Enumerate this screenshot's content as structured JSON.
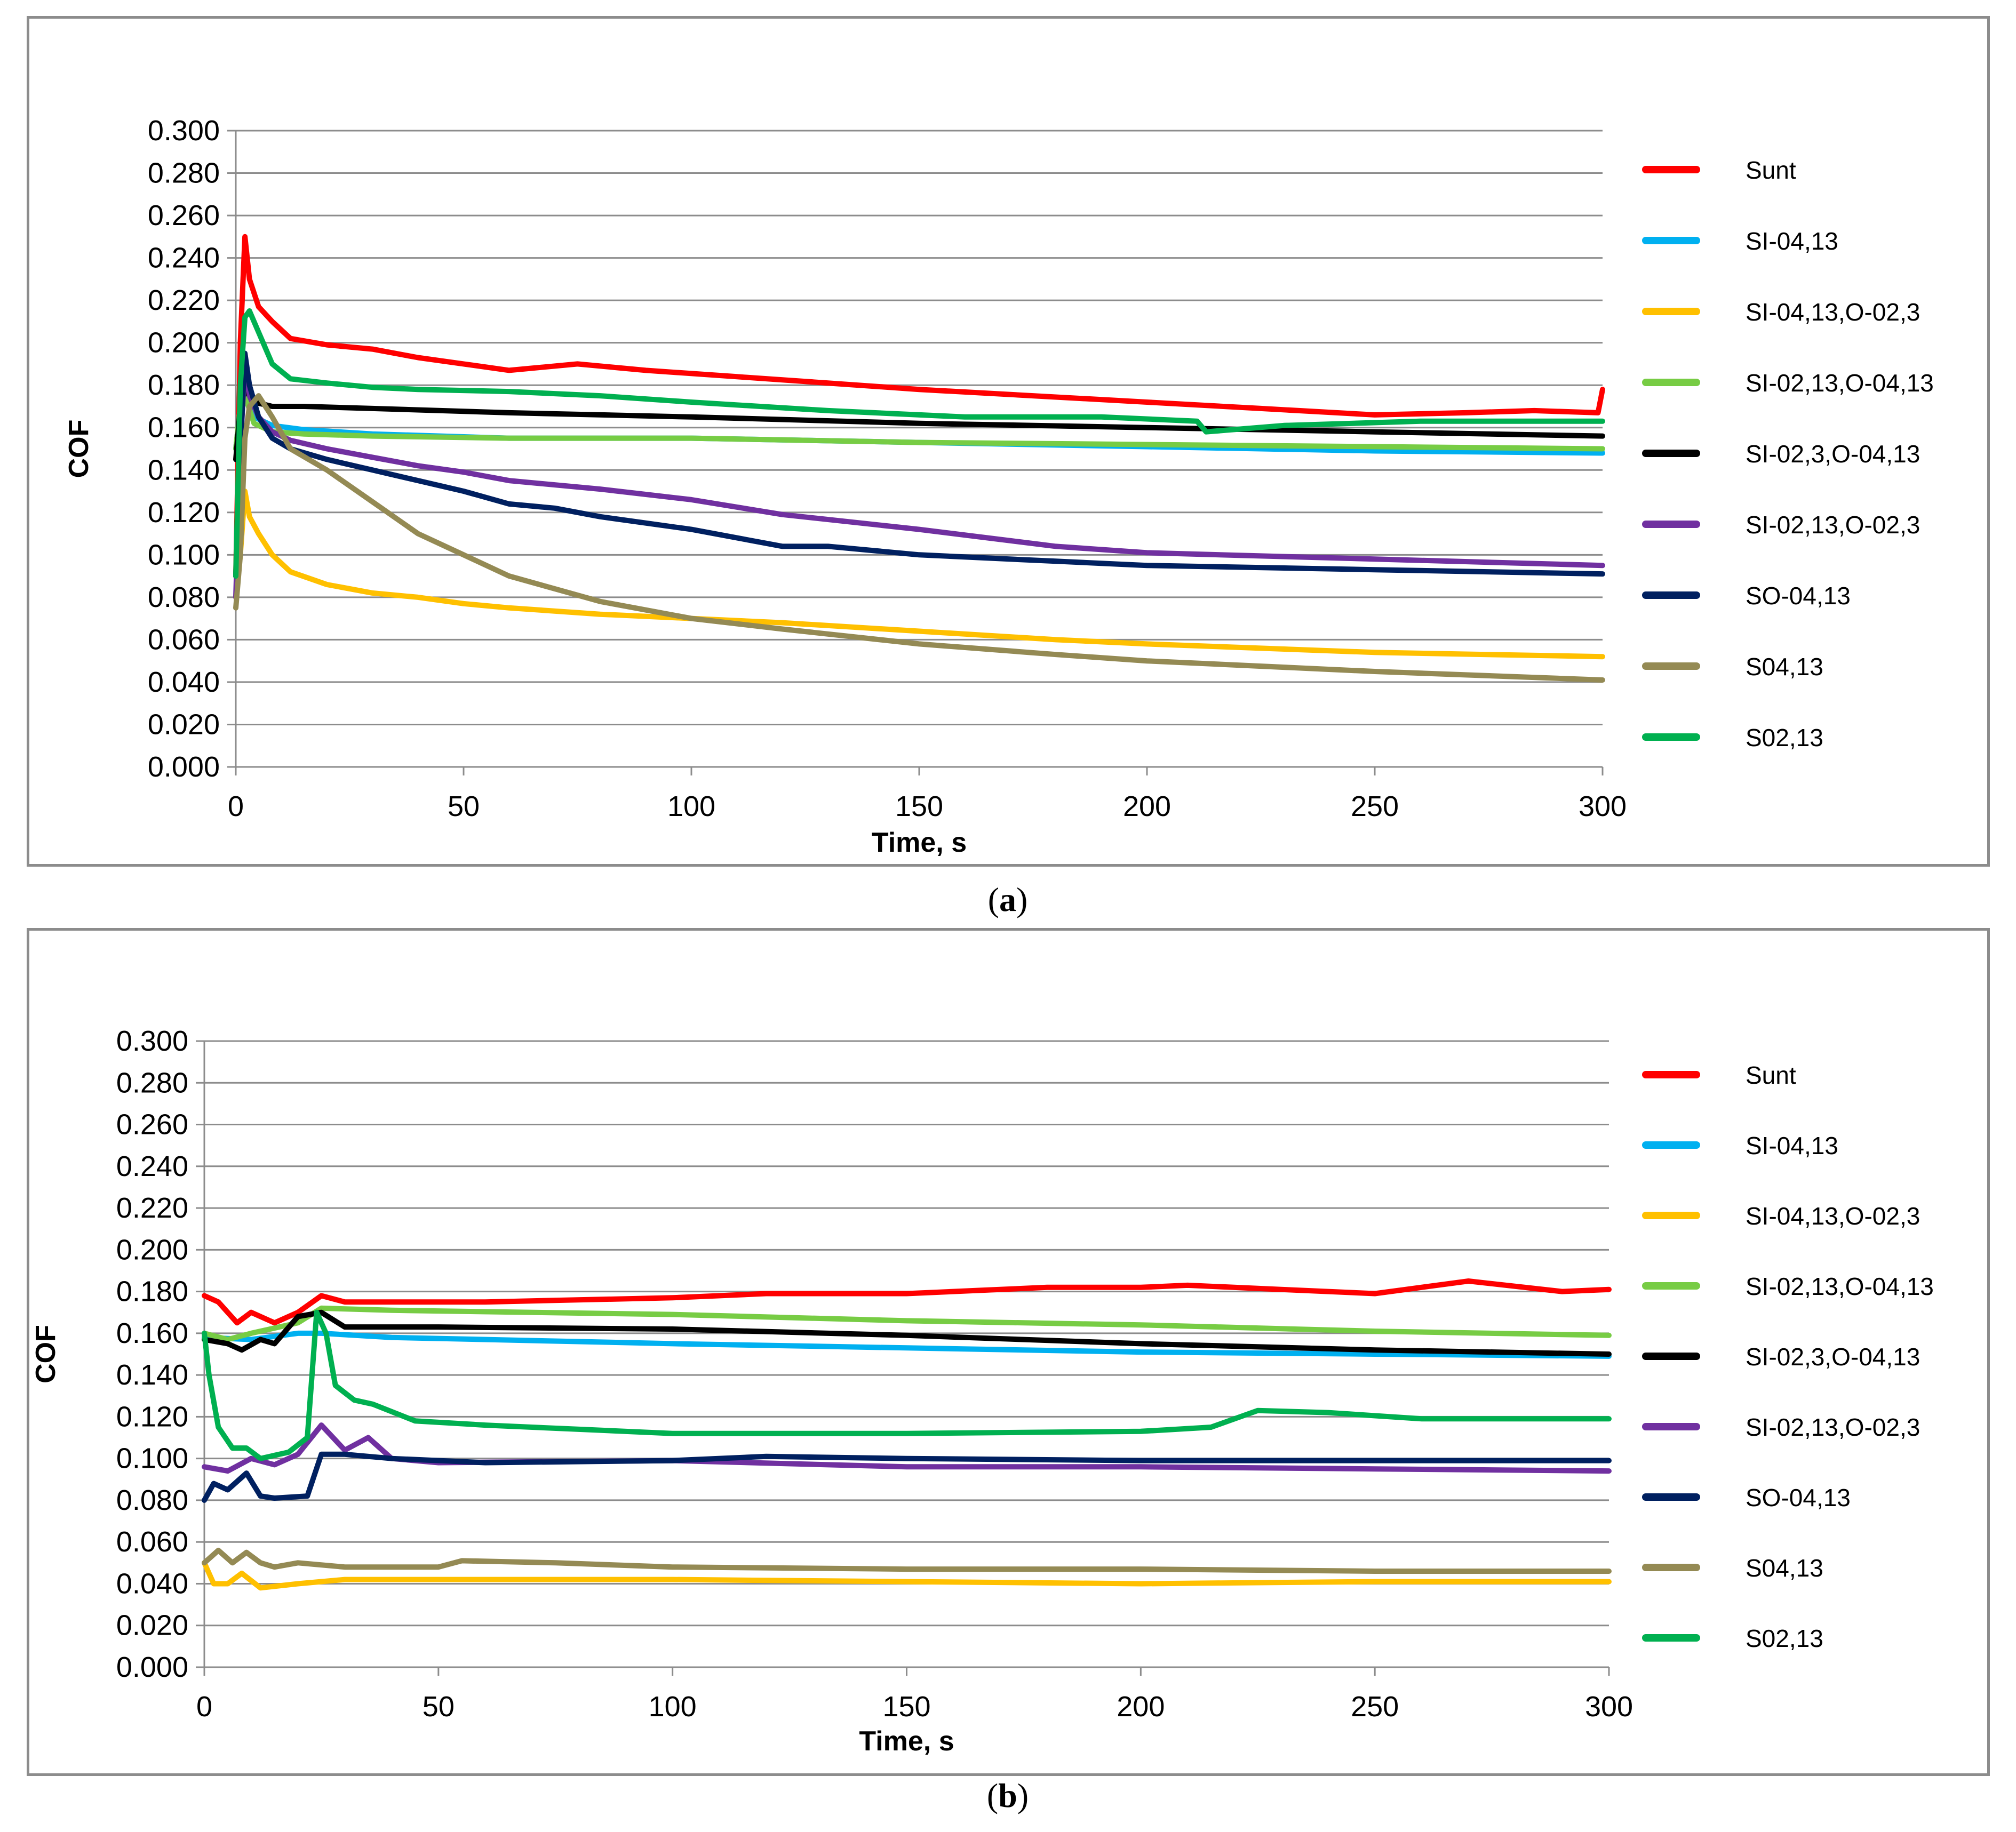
{
  "chart_data": [
    {
      "type": "line",
      "caption_letter": "a",
      "xlabel": "Time, s",
      "ylabel": "COF",
      "xlim": [
        0,
        300
      ],
      "ylim": [
        0,
        0.3
      ],
      "xticks": [
        "0",
        "50",
        "100",
        "150",
        "200",
        "250",
        "300"
      ],
      "yticks": [
        "0.000",
        "0.020",
        "0.040",
        "0.060",
        "0.080",
        "0.100",
        "0.120",
        "0.140",
        "0.160",
        "0.180",
        "0.200",
        "0.220",
        "0.240",
        "0.260",
        "0.280",
        "0.300"
      ],
      "legend_position": "right",
      "series": [
        {
          "name": "Sunt",
          "color": "#ff0000",
          "x": [
            0,
            1,
            2,
            3,
            5,
            8,
            12,
            20,
            30,
            40,
            50,
            60,
            65,
            75,
            90,
            110,
            130,
            150,
            175,
            200,
            225,
            250,
            270,
            285,
            299,
            300
          ],
          "y": [
            0.09,
            0.2,
            0.25,
            0.23,
            0.217,
            0.21,
            0.202,
            0.199,
            0.197,
            0.193,
            0.19,
            0.187,
            0.188,
            0.19,
            0.187,
            0.184,
            0.181,
            0.178,
            0.175,
            0.172,
            0.169,
            0.166,
            0.167,
            0.168,
            0.167,
            0.178
          ]
        },
        {
          "name": "SI-04,13",
          "color": "#00b0f0",
          "x": [
            0,
            1,
            2,
            4,
            8,
            15,
            30,
            60,
            100,
            150,
            200,
            250,
            300
          ],
          "y": [
            0.15,
            0.17,
            0.18,
            0.165,
            0.161,
            0.159,
            0.157,
            0.155,
            0.155,
            0.153,
            0.151,
            0.149,
            0.148
          ]
        },
        {
          "name": "SI-04,13,O-02,3",
          "color": "#ffc000",
          "x": [
            0,
            1,
            2,
            3,
            5,
            8,
            12,
            20,
            30,
            40,
            50,
            60,
            80,
            100,
            120,
            150,
            180,
            200,
            250,
            300
          ],
          "y": [
            0.08,
            0.1,
            0.13,
            0.118,
            0.11,
            0.1,
            0.092,
            0.086,
            0.082,
            0.08,
            0.077,
            0.075,
            0.072,
            0.07,
            0.068,
            0.064,
            0.06,
            0.058,
            0.054,
            0.052
          ]
        },
        {
          "name": "SI-02,13,O-04,13",
          "color": "#77cc44",
          "x": [
            0,
            1,
            2,
            4,
            8,
            15,
            30,
            60,
            100,
            150,
            200,
            250,
            300
          ],
          "y": [
            0.15,
            0.17,
            0.175,
            0.162,
            0.158,
            0.157,
            0.156,
            0.155,
            0.155,
            0.153,
            0.152,
            0.151,
            0.15
          ]
        },
        {
          "name": "SI-02,3,O-04,13",
          "color": "#000000",
          "x": [
            0,
            1,
            2,
            4,
            8,
            15,
            30,
            60,
            100,
            150,
            200,
            250,
            300
          ],
          "y": [
            0.145,
            0.17,
            0.178,
            0.172,
            0.17,
            0.17,
            0.169,
            0.167,
            0.165,
            0.162,
            0.16,
            0.158,
            0.156
          ]
        },
        {
          "name": "SI-02,13,O-02,3",
          "color": "#7030a0",
          "x": [
            0,
            1,
            2,
            3,
            5,
            8,
            12,
            20,
            30,
            40,
            50,
            60,
            80,
            100,
            120,
            150,
            180,
            200,
            250,
            300
          ],
          "y": [
            0.08,
            0.15,
            0.19,
            0.175,
            0.165,
            0.158,
            0.154,
            0.15,
            0.146,
            0.142,
            0.139,
            0.135,
            0.131,
            0.126,
            0.119,
            0.112,
            0.104,
            0.101,
            0.098,
            0.095
          ]
        },
        {
          "name": "SO-04,13",
          "color": "#002060",
          "x": [
            0,
            1,
            2,
            3,
            5,
            8,
            12,
            20,
            30,
            40,
            50,
            60,
            70,
            80,
            100,
            120,
            130,
            150,
            180,
            200,
            250,
            300
          ],
          "y": [
            0.09,
            0.15,
            0.195,
            0.18,
            0.165,
            0.155,
            0.15,
            0.145,
            0.14,
            0.135,
            0.13,
            0.124,
            0.122,
            0.118,
            0.112,
            0.104,
            0.104,
            0.1,
            0.097,
            0.095,
            0.093,
            0.091
          ]
        },
        {
          "name": "S04,13",
          "color": "#948a54",
          "x": [
            0,
            1,
            2,
            3,
            5,
            8,
            12,
            20,
            30,
            40,
            50,
            60,
            80,
            100,
            120,
            150,
            180,
            200,
            250,
            300
          ],
          "y": [
            0.075,
            0.1,
            0.155,
            0.17,
            0.175,
            0.165,
            0.15,
            0.14,
            0.125,
            0.11,
            0.1,
            0.09,
            0.078,
            0.07,
            0.065,
            0.058,
            0.053,
            0.05,
            0.045,
            0.041
          ]
        },
        {
          "name": "S02,13",
          "color": "#00b050",
          "x": [
            0,
            1,
            2,
            3,
            5,
            8,
            12,
            20,
            30,
            40,
            60,
            80,
            100,
            130,
            160,
            190,
            211,
            213,
            230,
            260,
            300
          ],
          "y": [
            0.09,
            0.18,
            0.212,
            0.215,
            0.205,
            0.19,
            0.183,
            0.181,
            0.179,
            0.178,
            0.177,
            0.175,
            0.172,
            0.168,
            0.165,
            0.165,
            0.163,
            0.158,
            0.161,
            0.163,
            0.163
          ]
        }
      ]
    },
    {
      "type": "line",
      "caption_letter": "b",
      "xlabel": "Time, s",
      "ylabel": "COF",
      "xlim": [
        0,
        300
      ],
      "ylim": [
        0,
        0.3
      ],
      "xticks": [
        "0",
        "50",
        "100",
        "150",
        "200",
        "250",
        "300"
      ],
      "yticks": [
        "0.000",
        "0.020",
        "0.040",
        "0.060",
        "0.080",
        "0.100",
        "0.120",
        "0.140",
        "0.160",
        "0.180",
        "0.200",
        "0.220",
        "0.240",
        "0.260",
        "0.280",
        "0.300"
      ],
      "legend_position": "right",
      "series": [
        {
          "name": "Sunt",
          "color": "#ff0000",
          "x": [
            0,
            3,
            7,
            10,
            15,
            20,
            25,
            30,
            40,
            60,
            100,
            120,
            150,
            180,
            200,
            210,
            230,
            250,
            270,
            290,
            300
          ],
          "y": [
            0.178,
            0.175,
            0.165,
            0.17,
            0.165,
            0.17,
            0.178,
            0.175,
            0.175,
            0.175,
            0.177,
            0.179,
            0.179,
            0.182,
            0.182,
            0.183,
            0.181,
            0.179,
            0.185,
            0.18,
            0.181
          ]
        },
        {
          "name": "SI-04,13",
          "color": "#00b0f0",
          "x": [
            0,
            10,
            20,
            25,
            40,
            100,
            150,
            200,
            250,
            300
          ],
          "y": [
            0.158,
            0.157,
            0.16,
            0.16,
            0.158,
            0.155,
            0.153,
            0.151,
            0.15,
            0.149
          ]
        },
        {
          "name": "SI-04,13,O-02,3",
          "color": "#ffc000",
          "x": [
            0,
            2,
            5,
            8,
            12,
            20,
            30,
            60,
            100,
            150,
            200,
            250,
            300
          ],
          "y": [
            0.05,
            0.04,
            0.04,
            0.045,
            0.038,
            0.04,
            0.042,
            0.042,
            0.042,
            0.041,
            0.04,
            0.041,
            0.041
          ]
        },
        {
          "name": "SI-02,13,O-04,13",
          "color": "#77cc44",
          "x": [
            0,
            5,
            10,
            20,
            25,
            40,
            100,
            150,
            200,
            250,
            300
          ],
          "y": [
            0.16,
            0.157,
            0.16,
            0.165,
            0.172,
            0.171,
            0.169,
            0.166,
            0.164,
            0.161,
            0.159
          ]
        },
        {
          "name": "SI-02,3,O-04,13",
          "color": "#000000",
          "x": [
            0,
            5,
            8,
            12,
            15,
            20,
            25,
            30,
            50,
            100,
            150,
            200,
            250,
            300
          ],
          "y": [
            0.157,
            0.155,
            0.152,
            0.157,
            0.155,
            0.168,
            0.17,
            0.163,
            0.163,
            0.162,
            0.159,
            0.155,
            0.152,
            0.15
          ]
        },
        {
          "name": "SI-02,13,O-02,3",
          "color": "#7030a0",
          "x": [
            0,
            5,
            10,
            15,
            20,
            25,
            30,
            35,
            40,
            50,
            100,
            150,
            200,
            250,
            300
          ],
          "y": [
            0.096,
            0.094,
            0.1,
            0.097,
            0.102,
            0.116,
            0.104,
            0.11,
            0.1,
            0.098,
            0.099,
            0.096,
            0.096,
            0.095,
            0.094
          ]
        },
        {
          "name": "SO-04,13",
          "color": "#002060",
          "x": [
            0,
            2,
            5,
            9,
            12,
            15,
            22,
            25,
            30,
            40,
            60,
            100,
            120,
            150,
            200,
            250,
            300
          ],
          "y": [
            0.08,
            0.088,
            0.085,
            0.093,
            0.082,
            0.081,
            0.082,
            0.102,
            0.102,
            0.1,
            0.098,
            0.099,
            0.101,
            0.1,
            0.099,
            0.099,
            0.099
          ]
        },
        {
          "name": "S04,13",
          "color": "#948a54",
          "x": [
            0,
            3,
            6,
            9,
            12,
            15,
            20,
            30,
            50,
            55,
            75,
            100,
            150,
            200,
            250,
            300
          ],
          "y": [
            0.05,
            0.056,
            0.05,
            0.055,
            0.05,
            0.048,
            0.05,
            0.048,
            0.048,
            0.051,
            0.05,
            0.048,
            0.047,
            0.047,
            0.046,
            0.046
          ]
        },
        {
          "name": "S02,13",
          "color": "#00b050",
          "x": [
            0,
            1,
            3,
            6,
            9,
            12,
            18,
            22,
            24,
            26,
            28,
            32,
            36,
            45,
            60,
            80,
            100,
            150,
            200,
            215,
            225,
            240,
            260,
            300
          ],
          "y": [
            0.16,
            0.14,
            0.115,
            0.105,
            0.105,
            0.1,
            0.103,
            0.11,
            0.17,
            0.16,
            0.135,
            0.128,
            0.126,
            0.118,
            0.116,
            0.114,
            0.112,
            0.112,
            0.113,
            0.115,
            0.123,
            0.122,
            0.119,
            0.119
          ]
        }
      ]
    }
  ]
}
